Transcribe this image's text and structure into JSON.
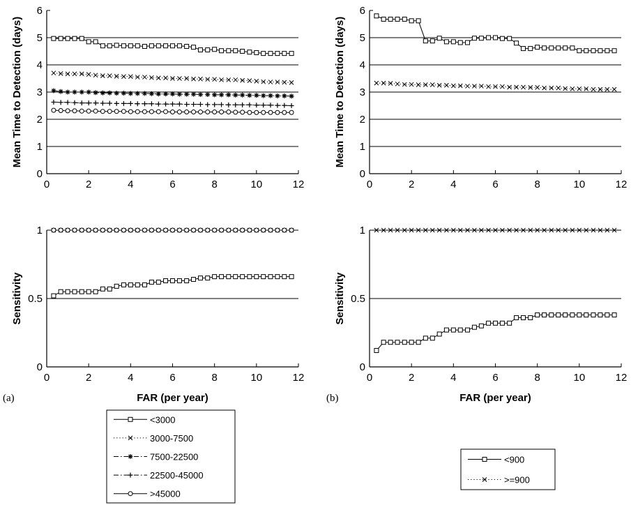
{
  "figure": {
    "panel_labels": [
      "(a)",
      "(b)"
    ],
    "x_label": "FAR (per year)",
    "y_label_mttd": "Mean Time to Detection (days)",
    "y_label_sens": "Sensitivity"
  },
  "chart_data": [
    {
      "id": "a-top",
      "type": "line",
      "xlabel": "",
      "ylabel": "Mean Time to Detection (days)",
      "xlim": [
        0,
        12
      ],
      "ylim": [
        0,
        6
      ],
      "xticks": [
        0,
        2,
        4,
        6,
        8,
        10,
        12
      ],
      "yticks": [
        0,
        1,
        2,
        3,
        4,
        5,
        6
      ],
      "hgrid": [
        1,
        2,
        3,
        4,
        5
      ],
      "x": [
        0.33,
        0.67,
        1.0,
        1.33,
        1.67,
        2.0,
        2.33,
        2.67,
        3.0,
        3.33,
        3.67,
        4.0,
        4.33,
        4.67,
        5.0,
        5.33,
        5.67,
        6.0,
        6.33,
        6.67,
        7.0,
        7.33,
        7.67,
        8.0,
        8.33,
        8.67,
        9.0,
        9.33,
        9.67,
        10.0,
        10.33,
        10.67,
        11.0,
        11.33,
        11.67
      ],
      "series": [
        {
          "name": "<3000",
          "marker": "square",
          "dash": "solid",
          "values": [
            4.97,
            4.97,
            4.97,
            4.97,
            4.97,
            4.85,
            4.85,
            4.7,
            4.7,
            4.72,
            4.7,
            4.7,
            4.7,
            4.68,
            4.7,
            4.7,
            4.7,
            4.7,
            4.7,
            4.68,
            4.65,
            4.55,
            4.55,
            4.57,
            4.52,
            4.52,
            4.52,
            4.5,
            4.47,
            4.45,
            4.42,
            4.42,
            4.42,
            4.42,
            4.42
          ]
        },
        {
          "name": "3000-7500",
          "marker": "x",
          "dash": "dot",
          "values": [
            3.7,
            3.68,
            3.67,
            3.67,
            3.67,
            3.65,
            3.62,
            3.6,
            3.6,
            3.58,
            3.57,
            3.57,
            3.55,
            3.55,
            3.53,
            3.52,
            3.52,
            3.5,
            3.5,
            3.5,
            3.48,
            3.48,
            3.47,
            3.47,
            3.45,
            3.45,
            3.45,
            3.43,
            3.42,
            3.4,
            3.38,
            3.37,
            3.37,
            3.36,
            3.35
          ]
        },
        {
          "name": "7500-22500",
          "marker": "star",
          "dash": "dashdot",
          "values": [
            3.05,
            3.02,
            3.0,
            3.0,
            3.0,
            3.0,
            2.98,
            2.97,
            2.97,
            2.96,
            2.96,
            2.95,
            2.95,
            2.95,
            2.94,
            2.93,
            2.93,
            2.93,
            2.92,
            2.92,
            2.92,
            2.91,
            2.91,
            2.9,
            2.9,
            2.9,
            2.89,
            2.89,
            2.88,
            2.88,
            2.87,
            2.87,
            2.86,
            2.86,
            2.85
          ]
        },
        {
          "name": "22500-45000",
          "marker": "plus",
          "dash": "dashdot",
          "values": [
            2.63,
            2.62,
            2.62,
            2.61,
            2.6,
            2.6,
            2.6,
            2.59,
            2.59,
            2.58,
            2.58,
            2.58,
            2.57,
            2.57,
            2.57,
            2.56,
            2.56,
            2.56,
            2.56,
            2.55,
            2.55,
            2.55,
            2.54,
            2.54,
            2.54,
            2.53,
            2.53,
            2.53,
            2.53,
            2.52,
            2.52,
            2.52,
            2.51,
            2.51,
            2.5
          ]
        },
        {
          "name": ">45000",
          "marker": "circle",
          "dash": "solid",
          "values": [
            2.33,
            2.32,
            2.31,
            2.31,
            2.3,
            2.3,
            2.3,
            2.29,
            2.29,
            2.29,
            2.29,
            2.28,
            2.28,
            2.28,
            2.28,
            2.28,
            2.28,
            2.27,
            2.27,
            2.27,
            2.27,
            2.27,
            2.27,
            2.27,
            2.27,
            2.27,
            2.26,
            2.26,
            2.25,
            2.25,
            2.25,
            2.25,
            2.25,
            2.25,
            2.25
          ]
        }
      ]
    },
    {
      "id": "b-top",
      "type": "line",
      "xlabel": "",
      "ylabel": "Mean Time to Detection (days)",
      "xlim": [
        0,
        12
      ],
      "ylim": [
        0,
        6
      ],
      "xticks": [
        0,
        2,
        4,
        6,
        8,
        10,
        12
      ],
      "yticks": [
        0,
        1,
        2,
        3,
        4,
        5,
        6
      ],
      "hgrid": [
        1,
        2,
        3,
        4,
        5
      ],
      "x": [
        0.33,
        0.67,
        1.0,
        1.33,
        1.67,
        2.0,
        2.33,
        2.67,
        3.0,
        3.33,
        3.67,
        4.0,
        4.33,
        4.67,
        5.0,
        5.33,
        5.67,
        6.0,
        6.33,
        6.67,
        7.0,
        7.33,
        7.67,
        8.0,
        8.33,
        8.67,
        9.0,
        9.33,
        9.67,
        10.0,
        10.33,
        10.67,
        11.0,
        11.33,
        11.67
      ],
      "series": [
        {
          "name": "<900",
          "marker": "square",
          "dash": "solid",
          "values": [
            5.8,
            5.68,
            5.68,
            5.68,
            5.68,
            5.62,
            5.62,
            4.88,
            4.88,
            4.98,
            4.85,
            4.85,
            4.82,
            4.82,
            4.98,
            4.98,
            5.0,
            5.0,
            4.97,
            4.97,
            4.8,
            4.6,
            4.6,
            4.65,
            4.62,
            4.62,
            4.62,
            4.62,
            4.62,
            4.52,
            4.52,
            4.52,
            4.52,
            4.52,
            4.52
          ]
        },
        {
          "name": ">=900",
          "marker": "x",
          "dash": "dot",
          "values": [
            3.33,
            3.33,
            3.32,
            3.3,
            3.28,
            3.28,
            3.27,
            3.27,
            3.27,
            3.25,
            3.25,
            3.23,
            3.23,
            3.22,
            3.22,
            3.22,
            3.2,
            3.2,
            3.2,
            3.18,
            3.18,
            3.18,
            3.17,
            3.17,
            3.15,
            3.15,
            3.15,
            3.13,
            3.12,
            3.12,
            3.12,
            3.1,
            3.1,
            3.1,
            3.1
          ]
        }
      ]
    },
    {
      "id": "a-bottom",
      "type": "line",
      "xlabel": "FAR (per year)",
      "ylabel": "Sensitivity",
      "xlim": [
        0,
        12
      ],
      "ylim": [
        0,
        1
      ],
      "xticks": [
        0,
        2,
        4,
        6,
        8,
        10,
        12
      ],
      "yticks": [
        0,
        0.5,
        1
      ],
      "hgrid": [
        0.5,
        1
      ],
      "x": [
        0.33,
        0.67,
        1.0,
        1.33,
        1.67,
        2.0,
        2.33,
        2.67,
        3.0,
        3.33,
        3.67,
        4.0,
        4.33,
        4.67,
        5.0,
        5.33,
        5.67,
        6.0,
        6.33,
        6.67,
        7.0,
        7.33,
        7.67,
        8.0,
        8.33,
        8.67,
        9.0,
        9.33,
        9.67,
        10.0,
        10.33,
        10.67,
        11.0,
        11.33,
        11.67
      ],
      "series": [
        {
          "name": "<3000",
          "marker": "square",
          "dash": "solid",
          "values": [
            0.52,
            0.55,
            0.55,
            0.55,
            0.55,
            0.55,
            0.55,
            0.57,
            0.57,
            0.59,
            0.6,
            0.6,
            0.6,
            0.6,
            0.62,
            0.62,
            0.63,
            0.63,
            0.63,
            0.63,
            0.64,
            0.65,
            0.65,
            0.66,
            0.66,
            0.66,
            0.66,
            0.66,
            0.66,
            0.66,
            0.66,
            0.66,
            0.66,
            0.66,
            0.66
          ]
        },
        {
          "name": "3000-7500",
          "marker": "x",
          "dash": "dot",
          "values": [
            1,
            1,
            1,
            1,
            1,
            1,
            1,
            1,
            1,
            1,
            1,
            1,
            1,
            1,
            1,
            1,
            1,
            1,
            1,
            1,
            1,
            1,
            1,
            1,
            1,
            1,
            1,
            1,
            1,
            1,
            1,
            1,
            1,
            1,
            1
          ]
        },
        {
          "name": "7500-22500",
          "marker": "star",
          "dash": "dashdot",
          "values": [
            1,
            1,
            1,
            1,
            1,
            1,
            1,
            1,
            1,
            1,
            1,
            1,
            1,
            1,
            1,
            1,
            1,
            1,
            1,
            1,
            1,
            1,
            1,
            1,
            1,
            1,
            1,
            1,
            1,
            1,
            1,
            1,
            1,
            1,
            1
          ]
        },
        {
          "name": "22500-45000",
          "marker": "plus",
          "dash": "dashdot",
          "values": [
            1,
            1,
            1,
            1,
            1,
            1,
            1,
            1,
            1,
            1,
            1,
            1,
            1,
            1,
            1,
            1,
            1,
            1,
            1,
            1,
            1,
            1,
            1,
            1,
            1,
            1,
            1,
            1,
            1,
            1,
            1,
            1,
            1,
            1,
            1
          ]
        },
        {
          "name": ">45000",
          "marker": "circle",
          "dash": "solid",
          "values": [
            1,
            1,
            1,
            1,
            1,
            1,
            1,
            1,
            1,
            1,
            1,
            1,
            1,
            1,
            1,
            1,
            1,
            1,
            1,
            1,
            1,
            1,
            1,
            1,
            1,
            1,
            1,
            1,
            1,
            1,
            1,
            1,
            1,
            1,
            1
          ]
        }
      ]
    },
    {
      "id": "b-bottom",
      "type": "line",
      "xlabel": "FAR (per year)",
      "ylabel": "Sensitivity",
      "xlim": [
        0,
        12
      ],
      "ylim": [
        0,
        1
      ],
      "xticks": [
        0,
        2,
        4,
        6,
        8,
        10,
        12
      ],
      "yticks": [
        0,
        0.5,
        1
      ],
      "hgrid": [
        0.5,
        1
      ],
      "x": [
        0.33,
        0.67,
        1.0,
        1.33,
        1.67,
        2.0,
        2.33,
        2.67,
        3.0,
        3.33,
        3.67,
        4.0,
        4.33,
        4.67,
        5.0,
        5.33,
        5.67,
        6.0,
        6.33,
        6.67,
        7.0,
        7.33,
        7.67,
        8.0,
        8.33,
        8.67,
        9.0,
        9.33,
        9.67,
        10.0,
        10.33,
        10.67,
        11.0,
        11.33,
        11.67
      ],
      "series": [
        {
          "name": "<900",
          "marker": "square",
          "dash": "solid",
          "values": [
            0.12,
            0.18,
            0.18,
            0.18,
            0.18,
            0.18,
            0.18,
            0.21,
            0.21,
            0.24,
            0.27,
            0.27,
            0.27,
            0.27,
            0.29,
            0.3,
            0.32,
            0.32,
            0.32,
            0.32,
            0.36,
            0.36,
            0.36,
            0.38,
            0.38,
            0.38,
            0.38,
            0.38,
            0.38,
            0.38,
            0.38,
            0.38,
            0.38,
            0.38,
            0.38
          ]
        },
        {
          "name": ">=900",
          "marker": "x",
          "dash": "dot",
          "values": [
            1,
            1,
            1,
            1,
            1,
            1,
            1,
            1,
            1,
            1,
            1,
            1,
            1,
            1,
            1,
            1,
            1,
            1,
            1,
            1,
            1,
            1,
            1,
            1,
            1,
            1,
            1,
            1,
            1,
            1,
            1,
            1,
            1,
            1,
            1
          ]
        }
      ]
    }
  ],
  "legends": [
    {
      "panel": "a",
      "entries": [
        "<3000",
        "3000-7500",
        "7500-22500",
        "22500-45000",
        ">45000"
      ]
    },
    {
      "panel": "b",
      "entries": [
        "<900",
        ">=900"
      ]
    }
  ]
}
